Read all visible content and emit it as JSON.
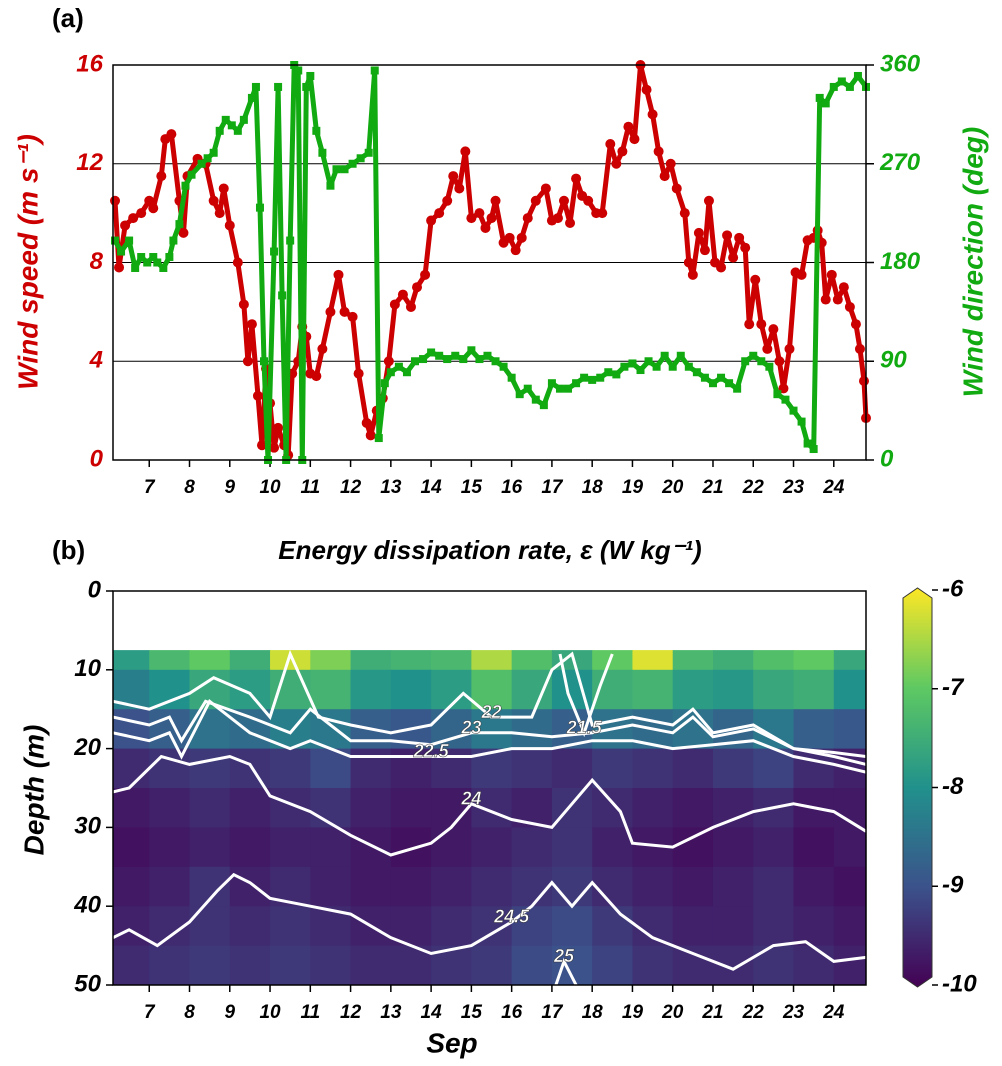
{
  "chart_data": [
    {
      "type": "line",
      "panel_label": "(a)",
      "ylabel": "Wind speed (m s⁻¹)",
      "y2label": "Wind direction (deg)",
      "xlim": [
        6.1,
        24.8
      ],
      "xticks": [
        7,
        8,
        9,
        10,
        11,
        12,
        13,
        14,
        15,
        16,
        17,
        18,
        19,
        20,
        21,
        22,
        23,
        24
      ],
      "ylim": [
        0,
        16
      ],
      "yticks": [
        0,
        4,
        8,
        12,
        16
      ],
      "y2lim": [
        0,
        360
      ],
      "y2ticks": [
        0,
        90,
        180,
        270,
        360
      ],
      "grid": true,
      "series": [
        {
          "color": "#cc0000",
          "marker": "circle",
          "x": [
            6.15,
            6.25,
            6.4,
            6.6,
            6.8,
            7.0,
            7.1,
            7.3,
            7.4,
            7.55,
            7.75,
            7.85,
            7.95,
            8.2,
            8.4,
            8.6,
            8.75,
            8.85,
            9.0,
            9.2,
            9.35,
            9.45,
            9.55,
            9.7,
            9.8,
            9.9,
            10.0,
            10.1,
            10.2,
            10.35,
            10.45,
            10.55,
            10.7,
            10.8,
            10.9,
            11.0,
            11.15,
            11.3,
            11.5,
            11.7,
            11.85,
            12.05,
            12.2,
            12.4,
            12.5,
            12.65,
            12.8,
            12.95,
            13.1,
            13.3,
            13.5,
            13.65,
            13.85,
            14.0,
            14.2,
            14.4,
            14.55,
            14.7,
            14.85,
            15.0,
            15.2,
            15.35,
            15.5,
            15.6,
            15.8,
            15.95,
            16.1,
            16.25,
            16.4,
            16.6,
            16.85,
            17.0,
            17.15,
            17.3,
            17.45,
            17.6,
            17.75,
            17.9,
            18.1,
            18.25,
            18.45,
            18.6,
            18.75,
            18.9,
            19.05,
            19.2,
            19.35,
            19.5,
            19.65,
            19.8,
            19.95,
            20.1,
            20.3,
            20.4,
            20.5,
            20.65,
            20.8,
            20.9,
            21.05,
            21.2,
            21.35,
            21.5,
            21.65,
            21.8,
            21.9,
            22.05,
            22.2,
            22.35,
            22.5,
            22.65,
            22.75,
            22.9,
            23.05,
            23.2,
            23.35,
            23.5,
            23.6,
            23.7,
            23.8,
            23.95,
            24.1,
            24.25,
            24.4,
            24.55,
            24.65,
            24.75,
            24.8
          ],
          "values": [
            10.5,
            7.8,
            9.5,
            9.8,
            10.0,
            10.5,
            10.2,
            11.5,
            13.0,
            13.2,
            10.5,
            9.2,
            11.5,
            12.2,
            12.0,
            10.5,
            10.0,
            11.0,
            9.5,
            8.0,
            6.3,
            4.0,
            5.5,
            2.6,
            0.6,
            3.7,
            2.3,
            0.5,
            1.3,
            0.6,
            0.2,
            3.5,
            4.0,
            5.4,
            5.0,
            3.5,
            3.4,
            4.5,
            6.0,
            7.5,
            6.0,
            5.8,
            3.5,
            1.5,
            1.0,
            2.0,
            2.5,
            4.0,
            6.3,
            6.7,
            6.2,
            7.0,
            7.5,
            9.7,
            10.0,
            10.5,
            11.5,
            11.0,
            12.5,
            9.8,
            10.0,
            9.4,
            9.8,
            10.5,
            8.8,
            9.0,
            8.5,
            9.0,
            9.8,
            10.5,
            11.0,
            9.7,
            9.8,
            10.5,
            9.6,
            11.4,
            10.7,
            10.5,
            10.0,
            10.0,
            12.8,
            12.0,
            12.5,
            13.5,
            13.0,
            16.0,
            15.0,
            14.0,
            12.5,
            11.5,
            12.0,
            11.0,
            10.0,
            8.0,
            7.5,
            9.2,
            8.5,
            10.5,
            8.0,
            7.8,
            9.1,
            8.2,
            9.0,
            8.6,
            5.5,
            7.3,
            5.5,
            4.5,
            5.3,
            4.0,
            2.9,
            4.5,
            7.6,
            7.5,
            8.9,
            9.0,
            9.3,
            8.8,
            6.5,
            7.5,
            6.5,
            7.0,
            6.2,
            5.5,
            4.5,
            3.2,
            1.7
          ]
        },
        {
          "color": "#11aa11",
          "marker": "square",
          "axis": "y2",
          "x": [
            6.15,
            6.3,
            6.5,
            6.65,
            6.8,
            6.95,
            7.1,
            7.2,
            7.35,
            7.5,
            7.6,
            7.75,
            7.9,
            8.05,
            8.3,
            8.45,
            8.6,
            8.75,
            8.9,
            9.05,
            9.2,
            9.35,
            9.55,
            9.65,
            9.75,
            9.85,
            9.95,
            10.1,
            10.2,
            10.3,
            10.4,
            10.5,
            10.6,
            10.7,
            10.8,
            10.9,
            11.0,
            11.15,
            11.3,
            11.5,
            11.65,
            11.85,
            12.05,
            12.25,
            12.45,
            12.6,
            12.7,
            12.85,
            13.0,
            13.2,
            13.4,
            13.6,
            13.8,
            14.0,
            14.2,
            14.4,
            14.6,
            14.8,
            15.0,
            15.2,
            15.4,
            15.6,
            15.8,
            16.0,
            16.2,
            16.4,
            16.6,
            16.8,
            17.0,
            17.2,
            17.4,
            17.6,
            17.8,
            18.0,
            18.2,
            18.4,
            18.6,
            18.8,
            19.0,
            19.2,
            19.4,
            19.6,
            19.8,
            20.0,
            20.2,
            20.4,
            20.6,
            20.8,
            21.0,
            21.2,
            21.4,
            21.6,
            21.8,
            22.0,
            22.2,
            22.4,
            22.6,
            22.8,
            23.0,
            23.2,
            23.35,
            23.5,
            23.65,
            23.8,
            24.0,
            24.2,
            24.4,
            24.6,
            24.8
          ],
          "values": [
            200,
            190,
            200,
            175,
            185,
            180,
            185,
            180,
            175,
            185,
            200,
            215,
            250,
            260,
            270,
            275,
            280,
            300,
            310,
            305,
            300,
            310,
            330,
            340,
            230,
            90,
            0,
            190,
            340,
            150,
            0,
            200,
            360,
            355,
            0,
            340,
            350,
            300,
            280,
            250,
            265,
            265,
            270,
            275,
            280,
            355,
            20,
            70,
            80,
            85,
            80,
            90,
            92,
            98,
            95,
            92,
            95,
            92,
            100,
            92,
            95,
            90,
            85,
            75,
            60,
            65,
            55,
            50,
            70,
            65,
            65,
            70,
            75,
            73,
            75,
            80,
            78,
            85,
            88,
            82,
            90,
            85,
            95,
            85,
            95,
            85,
            80,
            75,
            70,
            75,
            70,
            65,
            90,
            95,
            90,
            85,
            60,
            55,
            45,
            35,
            15,
            10,
            330,
            325,
            340,
            345,
            340,
            350,
            340
          ]
        }
      ]
    },
    {
      "type": "heatmap",
      "panel_label": "(b)",
      "title": "Energy dissipation rate, ε (W kg⁻¹)",
      "xlabel": "Sep",
      "ylabel": "Depth (m)",
      "xlim": [
        6.1,
        24.8
      ],
      "xticks": [
        7,
        8,
        9,
        10,
        11,
        12,
        13,
        14,
        15,
        16,
        17,
        18,
        19,
        20,
        21,
        22,
        23,
        24
      ],
      "ylim": [
        0,
        50
      ],
      "yticks": [
        0,
        10,
        20,
        30,
        40,
        50
      ],
      "invert_y": true,
      "clim": [
        -10,
        -6
      ],
      "cticks": [
        -10,
        -9,
        -8,
        -7,
        -6
      ],
      "colormap": "viridis",
      "x_bins": [
        6.1,
        7,
        8,
        9,
        10,
        11,
        12,
        13,
        14,
        15,
        16,
        17,
        18,
        19,
        20,
        21,
        22,
        23,
        24,
        24.8
      ],
      "depth_bins": [
        7.5,
        10,
        15,
        20,
        25,
        30,
        35,
        40,
        45,
        50
      ],
      "z": [
        [
          -7.8,
          -7.3,
          -7.0,
          -7.5,
          -6.3,
          -6.8,
          -7.5,
          -7.4,
          -7.3,
          -6.5,
          -7.2,
          -7.6,
          -7.0,
          -6.2,
          -7.3,
          -7.5,
          -7.2,
          -7.0,
          -7.6
        ],
        [
          -8.3,
          -8.0,
          -7.6,
          -7.8,
          -7.5,
          -7.4,
          -7.9,
          -8.0,
          -7.8,
          -7.2,
          -7.6,
          -8.0,
          -7.5,
          -7.4,
          -7.8,
          -7.9,
          -7.6,
          -7.5,
          -8.0
        ],
        [
          -9.0,
          -8.8,
          -8.5,
          -8.6,
          -8.3,
          -8.4,
          -8.8,
          -8.9,
          -8.7,
          -8.4,
          -8.6,
          -8.8,
          -8.5,
          -8.6,
          -8.5,
          -8.7,
          -8.4,
          -8.8,
          -8.9
        ],
        [
          -9.5,
          -9.4,
          -9.3,
          -9.4,
          -9.3,
          -9.1,
          -9.5,
          -9.6,
          -9.5,
          -9.3,
          -9.4,
          -9.5,
          -9.3,
          -9.4,
          -9.5,
          -9.3,
          -9.2,
          -9.5,
          -9.6
        ],
        [
          -9.7,
          -9.6,
          -9.5,
          -9.6,
          -9.5,
          -9.4,
          -9.6,
          -9.7,
          -9.7,
          -9.5,
          -9.6,
          -9.4,
          -9.5,
          -9.6,
          -9.7,
          -9.6,
          -9.5,
          -9.7,
          -9.7
        ],
        [
          -9.8,
          -9.7,
          -9.6,
          -9.7,
          -9.6,
          -9.6,
          -9.7,
          -9.8,
          -9.7,
          -9.6,
          -9.5,
          -9.4,
          -9.6,
          -9.7,
          -9.8,
          -9.7,
          -9.6,
          -9.8,
          -9.7
        ],
        [
          -9.7,
          -9.6,
          -9.4,
          -9.6,
          -9.5,
          -9.6,
          -9.7,
          -9.7,
          -9.6,
          -9.5,
          -9.4,
          -9.3,
          -9.5,
          -9.6,
          -9.7,
          -9.6,
          -9.5,
          -9.7,
          -9.8
        ],
        [
          -9.6,
          -9.5,
          -9.4,
          -9.5,
          -9.4,
          -9.5,
          -9.6,
          -9.6,
          -9.5,
          -9.4,
          -9.2,
          -9.1,
          -9.3,
          -9.5,
          -9.6,
          -9.6,
          -9.5,
          -9.6,
          -9.7
        ],
        [
          -9.5,
          -9.4,
          -9.3,
          -9.4,
          -9.3,
          -9.4,
          -9.5,
          -9.5,
          -9.4,
          -9.3,
          -9.1,
          -9.0,
          -9.2,
          -9.4,
          -9.5,
          -9.5,
          -9.4,
          -9.5,
          -9.6
        ]
      ],
      "contour_color": "#ffffff",
      "contours": [
        {
          "level": 22,
          "x": [
            6.1,
            7,
            8,
            8.6,
            9.5,
            10,
            10.5,
            11.2,
            12,
            13,
            14,
            14.8,
            15.5,
            16.5,
            17,
            17.5,
            18,
            19,
            20,
            20.5,
            21,
            22,
            23,
            24,
            24.8
          ],
          "depth": [
            14,
            15,
            13,
            11,
            13,
            16,
            8,
            16,
            17,
            18,
            17,
            13,
            16,
            16,
            10,
            8,
            17,
            16,
            17,
            15,
            18,
            17,
            20,
            20.5,
            21
          ]
        },
        {
          "level": 21.5,
          "x": [
            17.2,
            17.4,
            17.8,
            18.2,
            18.5
          ],
          "depth": [
            8,
            13,
            18,
            12,
            8
          ]
        },
        {
          "level": 22.5,
          "x": [
            6.1,
            7,
            7.5,
            7.8,
            8.2,
            8.5,
            9.5,
            10.5,
            11,
            12,
            13,
            14,
            15,
            16,
            17,
            18,
            19,
            20,
            21,
            22,
            23,
            24,
            24.8
          ],
          "depth": [
            18,
            19,
            18,
            21,
            17,
            14,
            18,
            20,
            19,
            21,
            21,
            21,
            21,
            20,
            20,
            19,
            19,
            20,
            19.5,
            19,
            21,
            22,
            23
          ]
        },
        {
          "level": 23,
          "x": [
            6.1,
            7,
            7.5,
            7.8,
            8.4,
            9.5,
            10.5,
            11,
            12,
            13,
            14,
            15,
            16,
            17,
            18,
            19,
            20,
            20.5,
            21,
            22,
            23,
            24,
            24.8
          ],
          "depth": [
            16,
            17,
            16,
            19,
            14,
            16,
            18,
            15,
            19,
            19,
            19.5,
            18,
            18,
            18.5,
            18,
            17,
            18,
            16,
            18.5,
            17.5,
            20,
            21,
            22
          ]
        },
        {
          "level": 24,
          "x": [
            6.1,
            6.5,
            7.3,
            8,
            9,
            9.5,
            10,
            11,
            12,
            13,
            14,
            14.5,
            15,
            16,
            17,
            17.5,
            18,
            18.7,
            19,
            20,
            21,
            22,
            23,
            24,
            24.8
          ],
          "depth": [
            25.5,
            25,
            21,
            22,
            21,
            22,
            26,
            28,
            31,
            33.5,
            32,
            30,
            27,
            29,
            30,
            27,
            24,
            28,
            32,
            32.5,
            30,
            28,
            27,
            28,
            30.5
          ]
        },
        {
          "level": 24.5,
          "x": [
            6.1,
            6.5,
            7.2,
            8,
            8.7,
            9.1,
            9.5,
            10,
            11,
            12,
            13,
            14,
            15,
            16,
            16.5,
            17,
            17.5,
            18,
            18.7,
            19.5,
            20.5,
            21.5,
            22.5,
            23.3,
            24,
            24.8
          ],
          "depth": [
            44,
            43,
            45,
            42,
            38,
            36,
            37,
            39,
            40,
            41,
            44,
            46,
            45,
            42,
            40,
            37,
            40,
            37,
            41,
            44,
            46,
            48,
            45,
            44.5,
            47,
            46.5
          ]
        },
        {
          "level": 25,
          "x": [
            17.1,
            17.3,
            17.6
          ],
          "depth": [
            50,
            47,
            50
          ]
        }
      ]
    }
  ]
}
